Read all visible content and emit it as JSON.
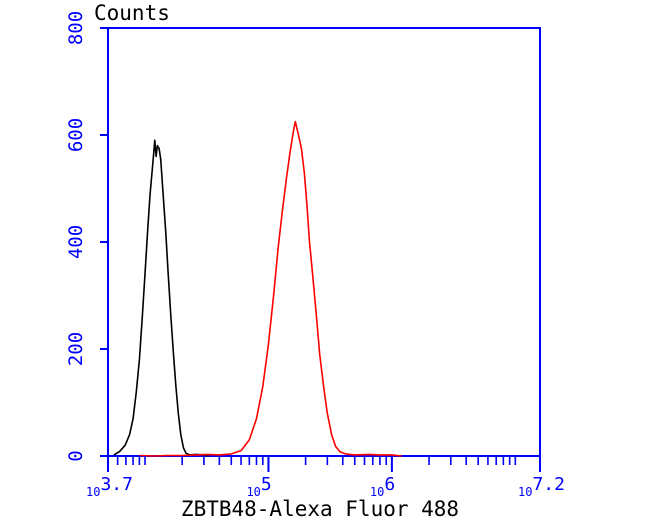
{
  "chart_data": {
    "type": "line",
    "ylabel": "Counts",
    "xlabel": "ZBTB48-Alexa Fluor 488",
    "x_scale": "log",
    "xlim": [
      5011.87,
      15848932
    ],
    "ylim": [
      0,
      800
    ],
    "y_ticks": [
      0,
      200,
      400,
      600,
      800
    ],
    "y_tick_labels": [
      "0",
      "200",
      "400",
      "600",
      "800"
    ],
    "x_tick_labels": [
      {
        "value": 5011.87,
        "base": "10",
        "exp": "3.7"
      },
      {
        "value": 100000,
        "base": "10",
        "exp": "5"
      },
      {
        "value": 1000000,
        "base": "10",
        "exp": "6"
      },
      {
        "value": 15848932,
        "base": "10",
        "exp": "7.2"
      }
    ],
    "x_minor_ticks": [
      6000,
      7000,
      8000,
      9000,
      10000,
      20000,
      30000,
      40000,
      50000,
      60000,
      70000,
      80000,
      90000,
      200000,
      300000,
      400000,
      500000,
      600000,
      700000,
      800000,
      900000,
      2000000,
      3000000,
      4000000,
      5000000,
      6000000,
      7000000,
      8000000,
      9000000,
      10000000
    ],
    "axis_color": "#0000ff",
    "grid": false,
    "series": [
      {
        "color": "#000000",
        "points": [
          [
            5600,
            2
          ],
          [
            6200,
            8
          ],
          [
            6900,
            20
          ],
          [
            7500,
            40
          ],
          [
            8000,
            70
          ],
          [
            8500,
            120
          ],
          [
            9000,
            180
          ],
          [
            9500,
            260
          ],
          [
            10000,
            340
          ],
          [
            10500,
            420
          ],
          [
            11000,
            490
          ],
          [
            11500,
            540
          ],
          [
            12000,
            590
          ],
          [
            12300,
            560
          ],
          [
            12600,
            580
          ],
          [
            13000,
            575
          ],
          [
            13400,
            555
          ],
          [
            14000,
            490
          ],
          [
            14700,
            420
          ],
          [
            15400,
            340
          ],
          [
            16200,
            260
          ],
          [
            17000,
            190
          ],
          [
            17800,
            130
          ],
          [
            18600,
            80
          ],
          [
            19500,
            40
          ],
          [
            20500,
            15
          ],
          [
            21500,
            5
          ],
          [
            23000,
            2
          ],
          [
            26000,
            3
          ],
          [
            30000,
            2
          ],
          [
            33000,
            0
          ]
        ]
      },
      {
        "color": "#ff0000",
        "points": [
          [
            9000,
            1
          ],
          [
            12000,
            0
          ],
          [
            15000,
            1
          ],
          [
            20000,
            1
          ],
          [
            26000,
            2
          ],
          [
            32000,
            3
          ],
          [
            40000,
            2
          ],
          [
            50000,
            4
          ],
          [
            60000,
            10
          ],
          [
            70000,
            30
          ],
          [
            80000,
            70
          ],
          [
            90000,
            130
          ],
          [
            100000,
            210
          ],
          [
            110000,
            300
          ],
          [
            120000,
            390
          ],
          [
            130000,
            460
          ],
          [
            140000,
            520
          ],
          [
            150000,
            570
          ],
          [
            160000,
            610
          ],
          [
            165000,
            625
          ],
          [
            175000,
            600
          ],
          [
            185000,
            575
          ],
          [
            195000,
            530
          ],
          [
            205000,
            470
          ],
          [
            215000,
            400
          ],
          [
            230000,
            330
          ],
          [
            245000,
            260
          ],
          [
            260000,
            190
          ],
          [
            280000,
            130
          ],
          [
            300000,
            80
          ],
          [
            325000,
            40
          ],
          [
            350000,
            18
          ],
          [
            380000,
            8
          ],
          [
            420000,
            4
          ],
          [
            500000,
            2
          ],
          [
            650000,
            3
          ],
          [
            800000,
            2
          ],
          [
            1000000,
            2
          ],
          [
            1200000,
            0
          ]
        ]
      }
    ]
  }
}
